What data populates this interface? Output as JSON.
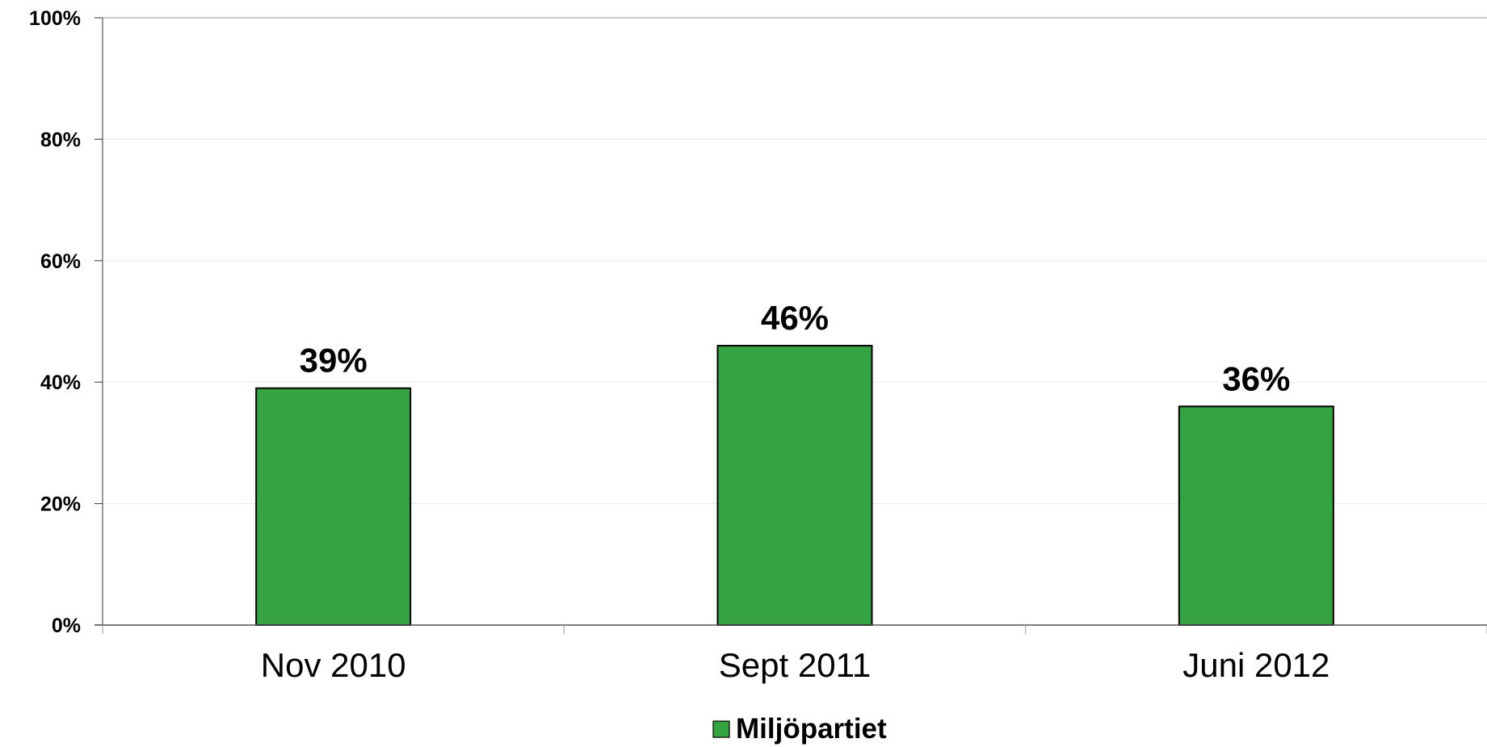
{
  "chart_data": {
    "type": "bar",
    "categories": [
      "Nov 2010",
      "Sept 2011",
      "Juni 2012"
    ],
    "series": [
      {
        "name": "Miljöpartiet",
        "values": [
          39,
          46,
          36
        ],
        "color": "#36a342"
      }
    ],
    "data_labels": [
      "39%",
      "46%",
      "36%"
    ],
    "yticks": [
      {
        "value": 0,
        "label": "0%"
      },
      {
        "value": 20,
        "label": "20%"
      },
      {
        "value": 40,
        "label": "40%"
      },
      {
        "value": 60,
        "label": "60%"
      },
      {
        "value": 80,
        "label": "80%"
      },
      {
        "value": 100,
        "label": "100%"
      }
    ],
    "ylim": [
      0,
      100
    ],
    "grid": true,
    "gridline_color": "#e8e8e8",
    "bar_outline_color": "#000000",
    "legend": {
      "position": "bottom",
      "entries": [
        "Miljöpartiet"
      ]
    }
  }
}
